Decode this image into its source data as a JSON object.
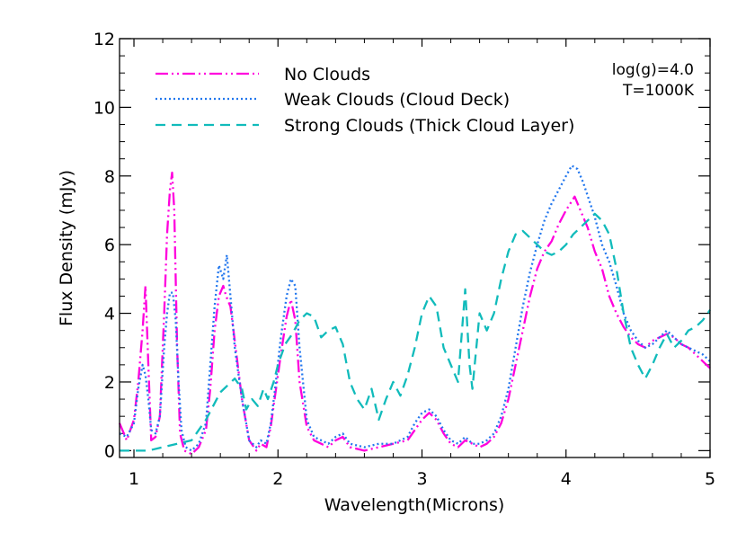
{
  "chart_data": {
    "type": "line",
    "title": "",
    "xlabel": "Wavelength(Microns)",
    "ylabel": "Flux Density (mJy)",
    "xlim": [
      0.9,
      5.0
    ],
    "ylim": [
      -0.2,
      12.0
    ],
    "x_ticks": [
      1,
      2,
      3,
      4,
      5
    ],
    "x_tick_labels": [
      "1",
      "2",
      "3",
      "4",
      "5"
    ],
    "y_ticks": [
      0,
      2,
      4,
      6,
      8,
      10,
      12
    ],
    "y_tick_labels": [
      "0",
      "2",
      "4",
      "6",
      "8",
      "10",
      "12"
    ],
    "grid": false,
    "legend_position": "top-left",
    "annotations": [
      "log(g)=4.0",
      "T=1000K"
    ],
    "series": [
      {
        "name": "No Clouds",
        "color": "#ff00dd",
        "style": "dash-dot-dot",
        "points": [
          [
            0.9,
            0.8
          ],
          [
            0.95,
            0.3
          ],
          [
            1.0,
            0.9
          ],
          [
            1.03,
            2.0
          ],
          [
            1.06,
            3.5
          ],
          [
            1.08,
            4.8
          ],
          [
            1.1,
            2.5
          ],
          [
            1.12,
            0.3
          ],
          [
            1.15,
            0.4
          ],
          [
            1.18,
            1.0
          ],
          [
            1.21,
            4.0
          ],
          [
            1.23,
            6.3
          ],
          [
            1.25,
            7.6
          ],
          [
            1.265,
            8.1
          ],
          [
            1.28,
            7.0
          ],
          [
            1.3,
            3.0
          ],
          [
            1.32,
            0.5
          ],
          [
            1.35,
            0.0
          ],
          [
            1.4,
            -0.1
          ],
          [
            1.45,
            0.1
          ],
          [
            1.5,
            0.6
          ],
          [
            1.53,
            1.8
          ],
          [
            1.56,
            3.5
          ],
          [
            1.59,
            4.5
          ],
          [
            1.62,
            4.8
          ],
          [
            1.64,
            4.5
          ],
          [
            1.67,
            4.2
          ],
          [
            1.7,
            3.2
          ],
          [
            1.75,
            1.5
          ],
          [
            1.8,
            0.3
          ],
          [
            1.85,
            0.0
          ],
          [
            1.88,
            0.2
          ],
          [
            1.92,
            0.1
          ],
          [
            1.95,
            0.7
          ],
          [
            1.98,
            1.6
          ],
          [
            2.02,
            2.8
          ],
          [
            2.06,
            3.9
          ],
          [
            2.09,
            4.4
          ],
          [
            2.12,
            3.8
          ],
          [
            2.15,
            2.0
          ],
          [
            2.2,
            0.7
          ],
          [
            2.25,
            0.3
          ],
          [
            2.3,
            0.2
          ],
          [
            2.35,
            0.1
          ],
          [
            2.4,
            0.3
          ],
          [
            2.45,
            0.4
          ],
          [
            2.5,
            0.1
          ],
          [
            2.6,
            0.0
          ],
          [
            2.7,
            0.1
          ],
          [
            2.8,
            0.2
          ],
          [
            2.9,
            0.3
          ],
          [
            2.95,
            0.6
          ],
          [
            3.0,
            0.9
          ],
          [
            3.05,
            1.1
          ],
          [
            3.1,
            0.9
          ],
          [
            3.15,
            0.5
          ],
          [
            3.2,
            0.2
          ],
          [
            3.25,
            0.1
          ],
          [
            3.3,
            0.3
          ],
          [
            3.35,
            0.2
          ],
          [
            3.4,
            0.1
          ],
          [
            3.45,
            0.2
          ],
          [
            3.5,
            0.4
          ],
          [
            3.55,
            0.8
          ],
          [
            3.6,
            1.5
          ],
          [
            3.65,
            2.5
          ],
          [
            3.7,
            3.5
          ],
          [
            3.75,
            4.5
          ],
          [
            3.8,
            5.3
          ],
          [
            3.85,
            5.8
          ],
          [
            3.9,
            6.1
          ],
          [
            3.95,
            6.6
          ],
          [
            4.0,
            7.0
          ],
          [
            4.03,
            7.2
          ],
          [
            4.06,
            7.4
          ],
          [
            4.1,
            7.0
          ],
          [
            4.15,
            6.5
          ],
          [
            4.2,
            5.8
          ],
          [
            4.25,
            5.3
          ],
          [
            4.3,
            4.5
          ],
          [
            4.35,
            4.0
          ],
          [
            4.4,
            3.6
          ],
          [
            4.45,
            3.3
          ],
          [
            4.5,
            3.1
          ],
          [
            4.55,
            3.0
          ],
          [
            4.6,
            3.2
          ],
          [
            4.65,
            3.3
          ],
          [
            4.7,
            3.4
          ],
          [
            4.75,
            3.3
          ],
          [
            4.8,
            3.1
          ],
          [
            4.85,
            3.0
          ],
          [
            4.9,
            2.8
          ],
          [
            4.95,
            2.6
          ],
          [
            5.0,
            2.4
          ]
        ]
      },
      {
        "name": "Weak Clouds (Cloud Deck)",
        "color": "#2277ee",
        "style": "dotted",
        "points": [
          [
            0.9,
            0.5
          ],
          [
            0.95,
            0.4
          ],
          [
            1.0,
            0.8
          ],
          [
            1.03,
            1.8
          ],
          [
            1.06,
            2.5
          ],
          [
            1.08,
            2.2
          ],
          [
            1.1,
            1.5
          ],
          [
            1.12,
            0.6
          ],
          [
            1.15,
            0.5
          ],
          [
            1.18,
            1.0
          ],
          [
            1.21,
            3.0
          ],
          [
            1.23,
            4.0
          ],
          [
            1.25,
            4.6
          ],
          [
            1.27,
            4.6
          ],
          [
            1.29,
            3.8
          ],
          [
            1.31,
            2.0
          ],
          [
            1.33,
            0.6
          ],
          [
            1.36,
            0.1
          ],
          [
            1.4,
            0.0
          ],
          [
            1.45,
            0.2
          ],
          [
            1.5,
            0.8
          ],
          [
            1.53,
            2.5
          ],
          [
            1.56,
            4.2
          ],
          [
            1.59,
            5.4
          ],
          [
            1.62,
            5.0
          ],
          [
            1.645,
            5.7
          ],
          [
            1.67,
            4.5
          ],
          [
            1.7,
            3.0
          ],
          [
            1.75,
            1.5
          ],
          [
            1.8,
            0.3
          ],
          [
            1.85,
            0.1
          ],
          [
            1.88,
            0.3
          ],
          [
            1.92,
            0.2
          ],
          [
            1.95,
            0.8
          ],
          [
            1.98,
            1.8
          ],
          [
            2.02,
            3.3
          ],
          [
            2.06,
            4.5
          ],
          [
            2.09,
            5.0
          ],
          [
            2.12,
            4.8
          ],
          [
            2.15,
            3.0
          ],
          [
            2.2,
            0.9
          ],
          [
            2.25,
            0.4
          ],
          [
            2.3,
            0.3
          ],
          [
            2.35,
            0.2
          ],
          [
            2.4,
            0.4
          ],
          [
            2.45,
            0.5
          ],
          [
            2.5,
            0.2
          ],
          [
            2.6,
            0.1
          ],
          [
            2.7,
            0.2
          ],
          [
            2.8,
            0.2
          ],
          [
            2.9,
            0.4
          ],
          [
            2.95,
            0.8
          ],
          [
            3.0,
            1.1
          ],
          [
            3.05,
            1.2
          ],
          [
            3.1,
            1.0
          ],
          [
            3.15,
            0.6
          ],
          [
            3.2,
            0.3
          ],
          [
            3.25,
            0.2
          ],
          [
            3.3,
            0.4
          ],
          [
            3.35,
            0.2
          ],
          [
            3.4,
            0.2
          ],
          [
            3.45,
            0.3
          ],
          [
            3.5,
            0.5
          ],
          [
            3.55,
            1.0
          ],
          [
            3.6,
            1.8
          ],
          [
            3.65,
            3.0
          ],
          [
            3.7,
            4.2
          ],
          [
            3.75,
            5.2
          ],
          [
            3.8,
            6.0
          ],
          [
            3.85,
            6.7
          ],
          [
            3.9,
            7.2
          ],
          [
            3.95,
            7.6
          ],
          [
            4.0,
            8.0
          ],
          [
            4.04,
            8.3
          ],
          [
            4.08,
            8.2
          ],
          [
            4.12,
            7.8
          ],
          [
            4.16,
            7.3
          ],
          [
            4.2,
            6.8
          ],
          [
            4.25,
            6.0
          ],
          [
            4.3,
            5.5
          ],
          [
            4.35,
            4.8
          ],
          [
            4.4,
            4.0
          ],
          [
            4.45,
            3.5
          ],
          [
            4.5,
            3.2
          ],
          [
            4.55,
            3.0
          ],
          [
            4.6,
            3.1
          ],
          [
            4.65,
            3.3
          ],
          [
            4.7,
            3.5
          ],
          [
            4.75,
            3.3
          ],
          [
            4.8,
            3.1
          ],
          [
            4.85,
            3.0
          ],
          [
            4.9,
            2.9
          ],
          [
            4.95,
            2.8
          ],
          [
            5.0,
            2.6
          ]
        ]
      },
      {
        "name": "Strong Clouds (Thick Cloud Layer)",
        "color": "#11bbbb",
        "style": "dashed",
        "points": [
          [
            0.9,
            0.0
          ],
          [
            1.0,
            0.0
          ],
          [
            1.1,
            0.0
          ],
          [
            1.2,
            0.1
          ],
          [
            1.3,
            0.2
          ],
          [
            1.4,
            0.3
          ],
          [
            1.45,
            0.6
          ],
          [
            1.5,
            0.9
          ],
          [
            1.55,
            1.3
          ],
          [
            1.6,
            1.7
          ],
          [
            1.65,
            1.9
          ],
          [
            1.7,
            2.1
          ],
          [
            1.75,
            1.8
          ],
          [
            1.78,
            1.2
          ],
          [
            1.82,
            1.5
          ],
          [
            1.86,
            1.3
          ],
          [
            1.9,
            1.8
          ],
          [
            1.93,
            1.5
          ],
          [
            1.97,
            2.0
          ],
          [
            2.0,
            2.5
          ],
          [
            2.05,
            3.1
          ],
          [
            2.1,
            3.4
          ],
          [
            2.15,
            3.8
          ],
          [
            2.2,
            4.0
          ],
          [
            2.25,
            3.9
          ],
          [
            2.3,
            3.3
          ],
          [
            2.35,
            3.5
          ],
          [
            2.4,
            3.6
          ],
          [
            2.45,
            3.1
          ],
          [
            2.5,
            2.0
          ],
          [
            2.55,
            1.5
          ],
          [
            2.6,
            1.2
          ],
          [
            2.65,
            1.8
          ],
          [
            2.7,
            0.9
          ],
          [
            2.75,
            1.5
          ],
          [
            2.8,
            2.0
          ],
          [
            2.85,
            1.6
          ],
          [
            2.9,
            2.2
          ],
          [
            2.95,
            3.0
          ],
          [
            3.0,
            4.0
          ],
          [
            3.05,
            4.5
          ],
          [
            3.1,
            4.2
          ],
          [
            3.15,
            3.0
          ],
          [
            3.2,
            2.5
          ],
          [
            3.25,
            2.0
          ],
          [
            3.3,
            4.7
          ],
          [
            3.33,
            2.5
          ],
          [
            3.35,
            1.8
          ],
          [
            3.4,
            4.0
          ],
          [
            3.45,
            3.5
          ],
          [
            3.5,
            4.0
          ],
          [
            3.55,
            5.0
          ],
          [
            3.6,
            5.8
          ],
          [
            3.65,
            6.3
          ],
          [
            3.7,
            6.4
          ],
          [
            3.75,
            6.2
          ],
          [
            3.8,
            6.0
          ],
          [
            3.85,
            5.8
          ],
          [
            3.9,
            5.7
          ],
          [
            3.95,
            5.8
          ],
          [
            4.0,
            6.0
          ],
          [
            4.05,
            6.3
          ],
          [
            4.1,
            6.5
          ],
          [
            4.15,
            6.7
          ],
          [
            4.2,
            6.9
          ],
          [
            4.25,
            6.7
          ],
          [
            4.3,
            6.3
          ],
          [
            4.35,
            5.3
          ],
          [
            4.4,
            4.0
          ],
          [
            4.45,
            3.0
          ],
          [
            4.5,
            2.5
          ],
          [
            4.55,
            2.1
          ],
          [
            4.6,
            2.5
          ],
          [
            4.65,
            3.0
          ],
          [
            4.7,
            3.4
          ],
          [
            4.75,
            3.0
          ],
          [
            4.8,
            3.2
          ],
          [
            4.85,
            3.5
          ],
          [
            4.9,
            3.6
          ],
          [
            4.95,
            3.8
          ],
          [
            5.0,
            4.1
          ]
        ]
      }
    ]
  }
}
